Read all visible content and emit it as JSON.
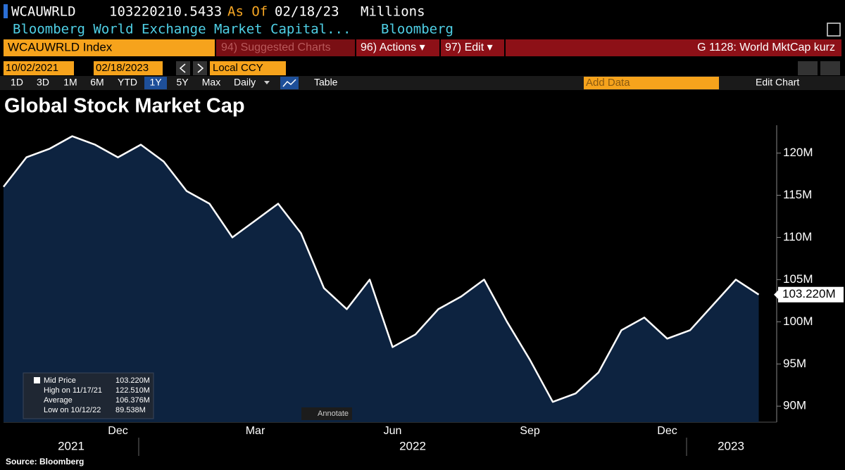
{
  "header": {
    "ticker": "WCAUWRLD",
    "value": "103220210.5433",
    "as_of_label": "As Of",
    "as_of": "02/18/23",
    "units": "Millions",
    "description": "Bloomberg World Exchange Market Capital...",
    "source_name": "Bloomberg"
  },
  "toolbar": {
    "security": "WCAUWRLD Index",
    "suggested": "94) Suggested Charts",
    "actions": "96) Actions ▾",
    "edit": "97) Edit ▾",
    "page": "G 1128: World MktCap kurz"
  },
  "range": {
    "start": "10/02/2021",
    "end": "02/18/2023",
    "currency": "Local CCY"
  },
  "periods": [
    "1D",
    "3D",
    "1M",
    "6M",
    "YTD",
    "1Y",
    "5Y",
    "Max"
  ],
  "selected_period": "1Y",
  "frequency": "Daily",
  "table_button": "Table",
  "add_data": "Add Data",
  "edit_chart": "Edit Chart",
  "annotate": "Annotate",
  "footer": "Source: Bloomberg",
  "legend_stats": [
    {
      "label": "Mid Price",
      "value": "103.220M"
    },
    {
      "label": "High on 11/17/21",
      "value": "122.510M"
    },
    {
      "label": "Average",
      "value": "106.376M"
    },
    {
      "label": "Low on 10/12/22",
      "value": "89.538M"
    }
  ],
  "chart_data": {
    "type": "line",
    "title": "Global Stock Market Cap",
    "categories": [
      null,
      null,
      null,
      null,
      null,
      "Dec",
      null,
      null,
      null,
      null,
      null,
      "Mar",
      null,
      null,
      null,
      null,
      null,
      "Jun",
      null,
      null,
      null,
      null,
      null,
      "Sep",
      null,
      null,
      null,
      null,
      null,
      "Dec",
      null,
      null,
      null,
      null
    ],
    "values": [
      116,
      119.5,
      120.5,
      122,
      121,
      119.5,
      121,
      119,
      115.5,
      114,
      110,
      112,
      114,
      110.5,
      104,
      101.5,
      105,
      97,
      98.5,
      101.5,
      103,
      105,
      100,
      95.5,
      90.5,
      91.5,
      94,
      99,
      100.5,
      98,
      99,
      102,
      105,
      103.22
    ],
    "color": "#ffffff",
    "fill": "#0d2340",
    "ylim": [
      88.1,
      123.3
    ],
    "yticks": [
      {
        "value": 90,
        "label": "90M"
      },
      {
        "value": 95,
        "label": "95M"
      },
      {
        "value": 100,
        "label": "100M"
      },
      {
        "value": 105,
        "label": "105M"
      },
      {
        "value": 110,
        "label": "110M"
      },
      {
        "value": 115,
        "label": "115M"
      },
      {
        "value": 120,
        "label": "120M"
      }
    ],
    "year_labels": [
      "2021",
      "2022",
      "2023"
    ]
  }
}
